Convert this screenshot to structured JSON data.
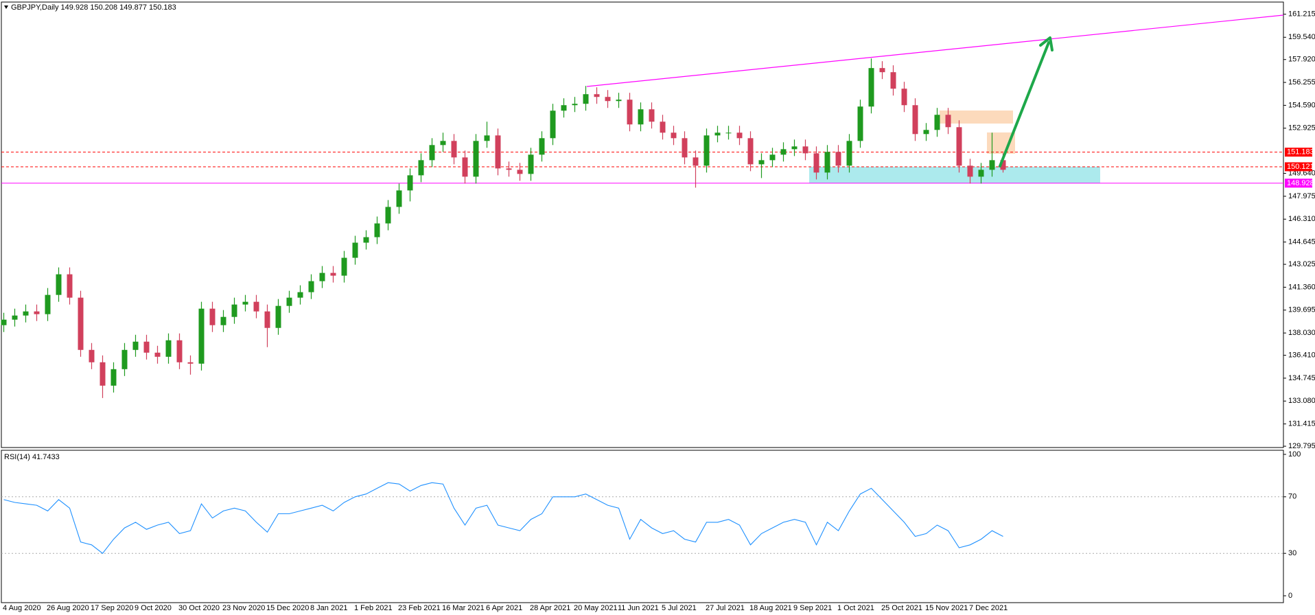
{
  "chart_data": [
    {
      "type": "candlestick",
      "title": "GBPJPY,Daily  149.928 150.208 149.877 150.183",
      "up_color": "#1f9a1f",
      "down_color": "#d1405c",
      "categories": [
        "4 Aug 2020",
        null,
        null,
        null,
        "26 Aug 2020",
        null,
        null,
        null,
        "17 Sep 2020",
        null,
        null,
        null,
        "9 Oct 2020",
        null,
        null,
        null,
        "30 Oct 2020",
        null,
        null,
        null,
        "23 Nov 2020",
        null,
        null,
        null,
        "15 Dec 2020",
        null,
        null,
        null,
        "8 Jan 2021",
        null,
        null,
        null,
        "1 Feb 2021",
        null,
        null,
        null,
        "23 Feb 2021",
        null,
        null,
        null,
        "16 Mar 2021",
        null,
        null,
        null,
        "6 Apr 2021",
        null,
        null,
        null,
        "28 Apr 2021",
        null,
        null,
        null,
        "20 May 2021",
        null,
        null,
        null,
        "11 Jun 2021",
        null,
        null,
        null,
        "5 Jul 2021",
        null,
        null,
        null,
        "27 Jul 2021",
        null,
        null,
        null,
        "18 Aug 2021",
        null,
        null,
        null,
        "9 Sep 2021",
        null,
        null,
        null,
        "1 Oct 2021",
        null,
        null,
        null,
        "25 Oct 2021",
        null,
        null,
        null,
        "15 Nov 2021",
        null,
        null,
        null,
        "7 Dec 2021",
        null,
        null,
        null
      ],
      "open": [
        138.6,
        139.0,
        139.3,
        139.6,
        139.4,
        140.8,
        142.3,
        140.6,
        136.8,
        135.9,
        134.2,
        135.4,
        136.8,
        137.4,
        136.6,
        136.3,
        137.5,
        135.9,
        135.8,
        139.8,
        138.6,
        139.2,
        140.1,
        140.3,
        139.6,
        138.4,
        140.0,
        140.6,
        141.0,
        141.8,
        142.4,
        142.2,
        143.5,
        144.6,
        145.0,
        146.0,
        147.2,
        148.4,
        149.5,
        150.6,
        151.7,
        152.0,
        150.8,
        149.4,
        152.0,
        152.4,
        150.0,
        149.9,
        149.6,
        151.0,
        152.2,
        154.2,
        154.6,
        154.7,
        155.4,
        155.2,
        154.9,
        155.0,
        153.2,
        154.3,
        153.4,
        152.6,
        152.2,
        150.8,
        150.2,
        152.4,
        152.6,
        152.6,
        152.2,
        150.3,
        150.6,
        151.0,
        151.4,
        151.6,
        151.1,
        149.7,
        151.2,
        150.2,
        152.0,
        154.5,
        157.3,
        157.0,
        155.8,
        154.6,
        152.5,
        152.8,
        153.9,
        153.0,
        150.2,
        149.4,
        149.9,
        150.6
      ],
      "high": [
        139.5,
        139.8,
        140.1,
        140.1,
        141.3,
        142.8,
        142.8,
        141.1,
        137.3,
        136.4,
        135.9,
        137.3,
        137.9,
        137.9,
        137.1,
        138.0,
        138.0,
        136.4,
        140.3,
        140.3,
        139.7,
        140.6,
        140.8,
        140.8,
        140.1,
        140.5,
        141.1,
        141.5,
        142.3,
        142.9,
        142.9,
        144.0,
        145.1,
        145.5,
        146.5,
        147.7,
        148.9,
        150.0,
        151.1,
        152.2,
        152.6,
        152.5,
        151.3,
        152.5,
        153.4,
        152.9,
        150.5,
        150.4,
        151.5,
        152.7,
        154.7,
        155.1,
        155.2,
        156.0,
        155.9,
        155.7,
        155.5,
        155.5,
        154.8,
        154.8,
        153.9,
        153.1,
        152.7,
        151.3,
        152.9,
        153.1,
        153.1,
        153.1,
        152.7,
        151.1,
        151.5,
        151.9,
        152.1,
        152.1,
        151.6,
        151.7,
        151.7,
        152.5,
        155.0,
        158.0,
        157.8,
        157.5,
        156.3,
        155.1,
        153.3,
        154.4,
        154.4,
        153.5,
        150.7,
        150.4,
        152.6,
        151.1
      ],
      "low": [
        138.1,
        138.5,
        138.8,
        138.9,
        138.9,
        140.3,
        140.1,
        136.3,
        135.4,
        133.3,
        133.7,
        134.9,
        136.3,
        136.1,
        135.8,
        135.8,
        135.4,
        135.0,
        135.3,
        138.1,
        138.1,
        138.7,
        139.6,
        139.1,
        137.0,
        137.9,
        139.5,
        140.1,
        140.5,
        141.3,
        141.7,
        141.7,
        143.0,
        144.1,
        144.5,
        145.5,
        146.7,
        147.6,
        149.0,
        150.1,
        151.2,
        150.3,
        148.9,
        148.9,
        151.5,
        149.5,
        149.4,
        149.1,
        149.1,
        150.5,
        151.7,
        153.7,
        154.1,
        154.2,
        154.7,
        154.4,
        154.4,
        152.7,
        152.7,
        152.9,
        152.1,
        151.7,
        150.3,
        148.6,
        149.7,
        151.9,
        152.1,
        151.7,
        149.8,
        149.3,
        150.1,
        150.5,
        150.9,
        150.6,
        149.2,
        149.2,
        149.7,
        149.7,
        151.5,
        154.0,
        156.5,
        155.3,
        154.1,
        152.0,
        152.0,
        152.3,
        152.5,
        149.7,
        148.9,
        148.9,
        149.4,
        149.7
      ],
      "close": [
        139.0,
        139.3,
        139.6,
        139.4,
        140.8,
        142.3,
        140.6,
        136.8,
        135.9,
        134.2,
        135.4,
        136.8,
        137.4,
        136.6,
        136.3,
        137.5,
        135.9,
        135.8,
        139.8,
        138.6,
        139.2,
        140.1,
        140.3,
        139.6,
        138.4,
        140.0,
        140.6,
        141.0,
        141.8,
        142.4,
        142.2,
        143.5,
        144.6,
        145.0,
        146.0,
        147.2,
        148.4,
        149.5,
        150.6,
        151.7,
        152.0,
        150.8,
        149.4,
        152.0,
        152.4,
        150.0,
        149.9,
        149.6,
        151.0,
        152.2,
        154.2,
        154.6,
        154.7,
        155.4,
        155.2,
        154.9,
        155.0,
        153.2,
        154.3,
        153.4,
        152.6,
        152.2,
        150.8,
        150.2,
        152.4,
        152.6,
        152.6,
        152.2,
        150.3,
        150.6,
        151.0,
        151.4,
        151.6,
        151.1,
        149.7,
        151.2,
        150.2,
        152.0,
        154.5,
        157.3,
        157.0,
        155.8,
        154.6,
        152.5,
        152.8,
        153.9,
        153.0,
        150.2,
        149.4,
        149.9,
        150.6,
        149.9
      ],
      "ylim": [
        129.7,
        162.1
      ],
      "yticks": [
        161.215,
        {
          "value": 159.54,
          "label": "159.540"
        },
        {
          "value": 157.92,
          "label": "157.920"
        },
        156.255,
        {
          "value": 154.59,
          "label": "154.590"
        },
        152.925,
        {
          "value": 149.64,
          "label": "149.640"
        },
        147.975,
        {
          "value": 146.31,
          "label": "146.310"
        },
        144.645,
        143.025,
        {
          "value": 141.36,
          "label": "141.360"
        },
        139.695,
        {
          "value": 138.03,
          "label": "138.030"
        },
        {
          "value": 136.41,
          "label": "136.410"
        },
        134.745,
        {
          "value": 133.08,
          "label": "133.080"
        },
        131.415,
        129.795
      ],
      "levels": [
        {
          "value": 151.183,
          "color": "#ff0000",
          "style": "dashed"
        },
        {
          "value": 150.121,
          "color": "#ff0000",
          "style": "dashed"
        },
        {
          "value": 148.928,
          "color": "#ff00ff",
          "style": "solid"
        }
      ]
    },
    {
      "type": "line",
      "title": "RSI(14) 41.7433",
      "color": "#1e90ff",
      "values": [
        68,
        66,
        65,
        64,
        60,
        68,
        62,
        38,
        36,
        30,
        40,
        48,
        52,
        47,
        50,
        52,
        44,
        46,
        65,
        55,
        60,
        62,
        60,
        52,
        45,
        58,
        58,
        60,
        62,
        64,
        60,
        66,
        70,
        72,
        76,
        80,
        79,
        74,
        78,
        80,
        79,
        62,
        50,
        62,
        64,
        50,
        48,
        46,
        54,
        58,
        70,
        70,
        70,
        72,
        68,
        64,
        62,
        40,
        54,
        48,
        44,
        46,
        40,
        38,
        52,
        52,
        54,
        50,
        36,
        44,
        48,
        52,
        54,
        52,
        36,
        52,
        46,
        60,
        72,
        76,
        68,
        60,
        52,
        42,
        44,
        50,
        46,
        34,
        36,
        40,
        46,
        42
      ],
      "ylim": [
        -4.85,
        102.9
      ],
      "yticks": [
        100,
        70,
        30,
        0
      ],
      "levels": [
        70,
        30
      ]
    }
  ]
}
